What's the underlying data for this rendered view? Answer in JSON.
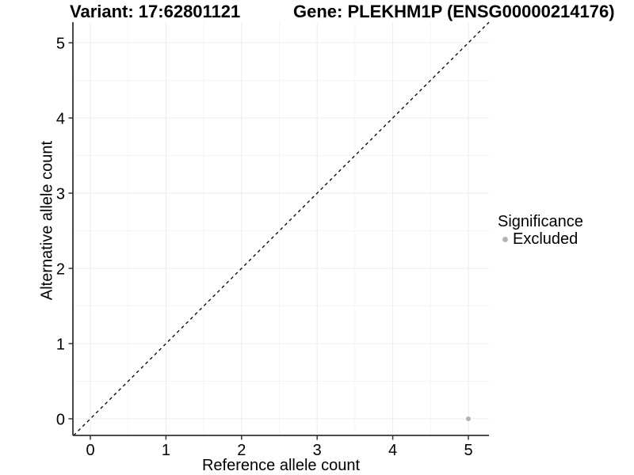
{
  "chart_data": {
    "type": "scatter",
    "title_left": "Variant: 17:62801121",
    "title_right": "Gene: PLEKHM1P (ENSG00000214176)",
    "xlabel": "Reference allele count",
    "ylabel": "Alternative allele count",
    "x_ticks": [
      0,
      1,
      2,
      3,
      4,
      5
    ],
    "y_ticks": [
      0,
      1,
      2,
      3,
      4,
      5
    ],
    "xlim": [
      -0.23,
      5.27
    ],
    "ylim": [
      -0.22,
      5.27
    ],
    "grid": {
      "major": true,
      "minor": true
    },
    "reference_line": {
      "type": "identity",
      "slope": 1,
      "intercept": 0,
      "style": "dashed",
      "color": "#000000"
    },
    "series": [
      {
        "name": "Excluded",
        "color": "#b5b5b5",
        "points": [
          {
            "x": 5,
            "y": 0
          }
        ]
      }
    ],
    "legend": {
      "title": "Significance",
      "position": "right",
      "items": [
        {
          "label": "Excluded",
          "color": "#b5b5b5"
        }
      ]
    },
    "colors": {
      "background": "#ffffff",
      "axis_line": "#333333",
      "grid_major": "#ececec",
      "grid_minor": "#f5f5f5",
      "text": "#000000",
      "point": "#b5b5b5"
    }
  }
}
